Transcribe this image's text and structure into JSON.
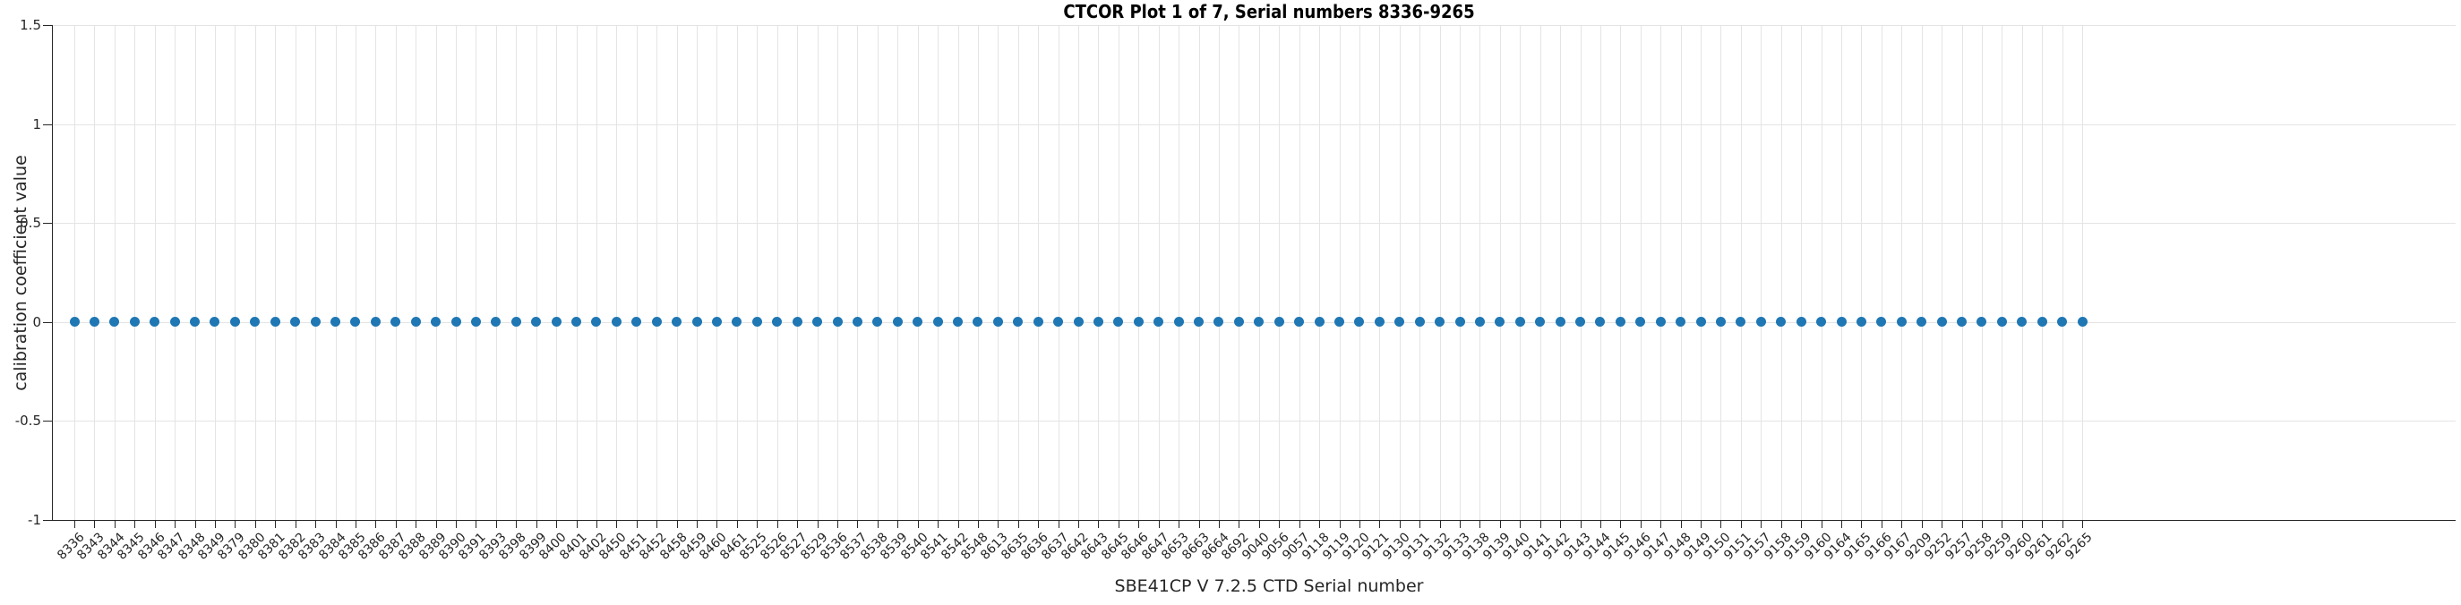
{
  "title": "CTCOR Plot 1 of 7, Serial numbers 8336-9265",
  "chart_data": {
    "type": "scatter",
    "title": "CTCOR Plot 1 of 7, Serial numbers 8336-9265",
    "xlabel": "SBE41CP V 7.2.5 CTD Serial number",
    "ylabel": "calibration coefficient value",
    "categories": [
      "8336",
      "8343",
      "8344",
      "8345",
      "8346",
      "8347",
      "8348",
      "8349",
      "8379",
      "8380",
      "8381",
      "8382",
      "8383",
      "8384",
      "8385",
      "8386",
      "8387",
      "8388",
      "8389",
      "8390",
      "8391",
      "8393",
      "8398",
      "8399",
      "8400",
      "8401",
      "8402",
      "8450",
      "8451",
      "8452",
      "8458",
      "8459",
      "8460",
      "8461",
      "8525",
      "8526",
      "8527",
      "8529",
      "8536",
      "8537",
      "8538",
      "8539",
      "8540",
      "8541",
      "8542",
      "8548",
      "8613",
      "8635",
      "8636",
      "8637",
      "8642",
      "8643",
      "8645",
      "8646",
      "8647",
      "8653",
      "8663",
      "8664",
      "8692",
      "9040",
      "9056",
      "9057",
      "9118",
      "9119",
      "9120",
      "9121",
      "9130",
      "9131",
      "9132",
      "9133",
      "9138",
      "9139",
      "9140",
      "9141",
      "9142",
      "9143",
      "9144",
      "9145",
      "9146",
      "9147",
      "9148",
      "9149",
      "9150",
      "9151",
      "9157",
      "9158",
      "9159",
      "9160",
      "9164",
      "9165",
      "9166",
      "9167",
      "9209",
      "9252",
      "9257",
      "9258",
      "9259",
      "9260",
      "9261",
      "9262",
      "9265"
    ],
    "values": [
      0,
      0,
      0,
      0,
      0,
      0,
      0,
      0,
      0,
      0,
      0,
      0,
      0,
      0,
      0,
      0,
      0,
      0,
      0,
      0,
      0,
      0,
      0,
      0,
      0,
      0,
      0,
      0,
      0,
      0,
      0,
      0,
      0,
      0,
      0,
      0,
      0,
      0,
      0,
      0,
      0,
      0,
      0,
      0,
      0,
      0,
      0,
      0,
      0,
      0,
      0,
      0,
      0,
      0,
      0,
      0,
      0,
      0,
      0,
      0,
      0,
      0,
      0,
      0,
      0,
      0,
      0,
      0,
      0,
      0,
      0,
      0,
      0,
      0,
      0,
      0,
      0,
      0,
      0,
      0,
      0,
      0,
      0,
      0,
      0,
      0,
      0,
      0,
      0,
      0,
      0,
      0,
      0,
      0,
      0,
      0,
      0,
      0,
      0,
      0,
      0
    ],
    "yticks": [
      -1,
      -0.5,
      0,
      0.5,
      1,
      1.5
    ],
    "ytick_labels": [
      "-1",
      "-0.5",
      "0",
      "0.5",
      "1",
      "1.5"
    ],
    "ylim": [
      -1,
      1.5
    ],
    "grid": true,
    "tick_label_rotation_deg": 45,
    "marker_color": "#1f77b4",
    "grid_color": "#e4e4e4",
    "axis_color": "#262626",
    "legend": null
  }
}
